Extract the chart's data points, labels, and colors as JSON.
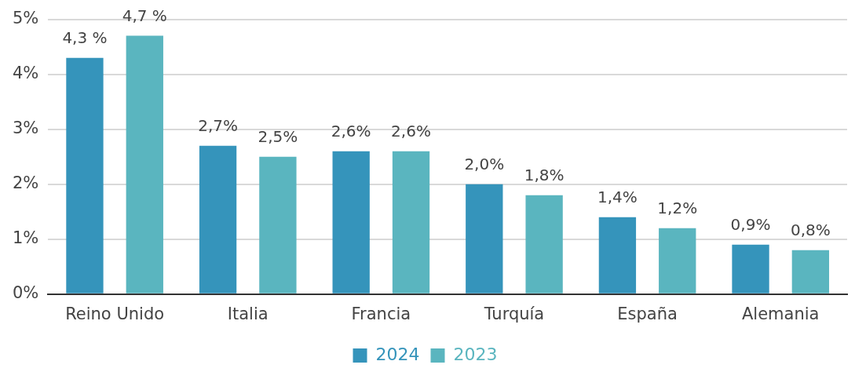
{
  "chart_data": {
    "type": "bar",
    "categories": [
      "Reino Unido",
      "Italia",
      "Francia",
      "Turquía",
      "España",
      "Alemania"
    ],
    "series": [
      {
        "name": "2024",
        "color": "#3594bb",
        "values": [
          4.3,
          2.7,
          2.6,
          2.0,
          1.4,
          0.9
        ],
        "value_labels": [
          "4,3 %",
          "2,7%",
          "2,6%",
          "2,0%",
          "1,4%",
          "0,9%"
        ]
      },
      {
        "name": "2023",
        "color": "#5ab5bf",
        "values": [
          4.7,
          2.5,
          2.6,
          1.8,
          1.2,
          0.8
        ],
        "value_labels": [
          "4,7 %",
          "2,5%",
          "2,6%",
          "1,8%",
          "1,2%",
          "0,8%"
        ]
      }
    ],
    "ylim": [
      0,
      5
    ],
    "yticks": [
      {
        "value": 0,
        "label": "0%"
      },
      {
        "value": 1,
        "label": "1%"
      },
      {
        "value": 2,
        "label": "2%"
      },
      {
        "value": 3,
        "label": "3%"
      },
      {
        "value": 4,
        "label": "4%"
      },
      {
        "value": 5,
        "label": "5%"
      }
    ],
    "grid": "y",
    "legend": "bottom"
  }
}
